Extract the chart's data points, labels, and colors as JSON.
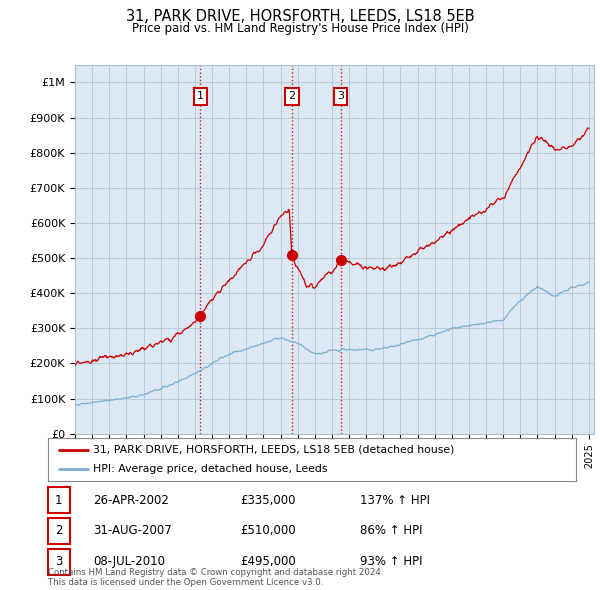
{
  "title": "31, PARK DRIVE, HORSFORTH, LEEDS, LS18 5EB",
  "subtitle": "Price paid vs. HM Land Registry's House Price Index (HPI)",
  "ylim": [
    0,
    1050000
  ],
  "yticks": [
    0,
    100000,
    200000,
    300000,
    400000,
    500000,
    600000,
    700000,
    800000,
    900000,
    1000000
  ],
  "ytick_labels": [
    "£0",
    "£100K",
    "£200K",
    "£300K",
    "£400K",
    "£500K",
    "£600K",
    "£700K",
    "£800K",
    "£900K",
    "£1M"
  ],
  "property_color": "#cc0000",
  "hpi_color": "#7ab0d4",
  "chart_bg": "#dce9f5",
  "sale_points": [
    {
      "year": 2002.32,
      "price": 335000,
      "label": "1",
      "hpi_pct": "137% ↑ HPI",
      "date": "26-APR-2002"
    },
    {
      "year": 2007.66,
      "price": 510000,
      "label": "2",
      "hpi_pct": "86% ↑ HPI",
      "date": "31-AUG-2007"
    },
    {
      "year": 2010.51,
      "price": 495000,
      "label": "3",
      "hpi_pct": "93% ↑ HPI",
      "date": "08-JUL-2010"
    }
  ],
  "legend_label_property": "31, PARK DRIVE, HORSFORTH, LEEDS, LS18 5EB (detached house)",
  "legend_label_hpi": "HPI: Average price, detached house, Leeds",
  "footer": "Contains HM Land Registry data © Crown copyright and database right 2024.\nThis data is licensed under the Open Government Licence v3.0.",
  "background_color": "#ffffff",
  "hpi_data": {
    "years": [
      1995,
      1996,
      1997,
      1998,
      1999,
      2000,
      2001,
      2002,
      2003,
      2004,
      2005,
      2006,
      2007,
      2008,
      2009,
      2010,
      2011,
      2012,
      2013,
      2014,
      2015,
      2016,
      2017,
      2018,
      2019,
      2020,
      2021,
      2022,
      2023,
      2024,
      2025
    ],
    "values": [
      82000,
      88000,
      95000,
      102000,
      112000,
      128000,
      148000,
      170000,
      200000,
      228000,
      240000,
      258000,
      272000,
      258000,
      225000,
      238000,
      240000,
      238000,
      242000,
      255000,
      268000,
      282000,
      300000,
      308000,
      315000,
      325000,
      380000,
      420000,
      390000,
      415000,
      430000
    ]
  },
  "prop_data": {
    "years": [
      1995,
      1996,
      1997,
      1998,
      1999,
      2000,
      2001,
      2002,
      2002.32,
      2003,
      2004,
      2005,
      2006,
      2007,
      2007.5,
      2007.66,
      2008,
      2008.5,
      2009,
      2009.5,
      2010,
      2010.51,
      2011,
      2012,
      2013,
      2014,
      2015,
      2016,
      2017,
      2018,
      2019,
      2020,
      2021,
      2022,
      2023,
      2024,
      2025
    ],
    "values": [
      200000,
      208000,
      218000,
      228000,
      242000,
      258000,
      282000,
      318000,
      335000,
      385000,
      435000,
      488000,
      535000,
      620000,
      640000,
      510000,
      470000,
      425000,
      420000,
      445000,
      460000,
      495000,
      488000,
      472000,
      468000,
      490000,
      518000,
      545000,
      580000,
      610000,
      640000,
      672000,
      760000,
      850000,
      810000,
      820000,
      870000
    ]
  }
}
